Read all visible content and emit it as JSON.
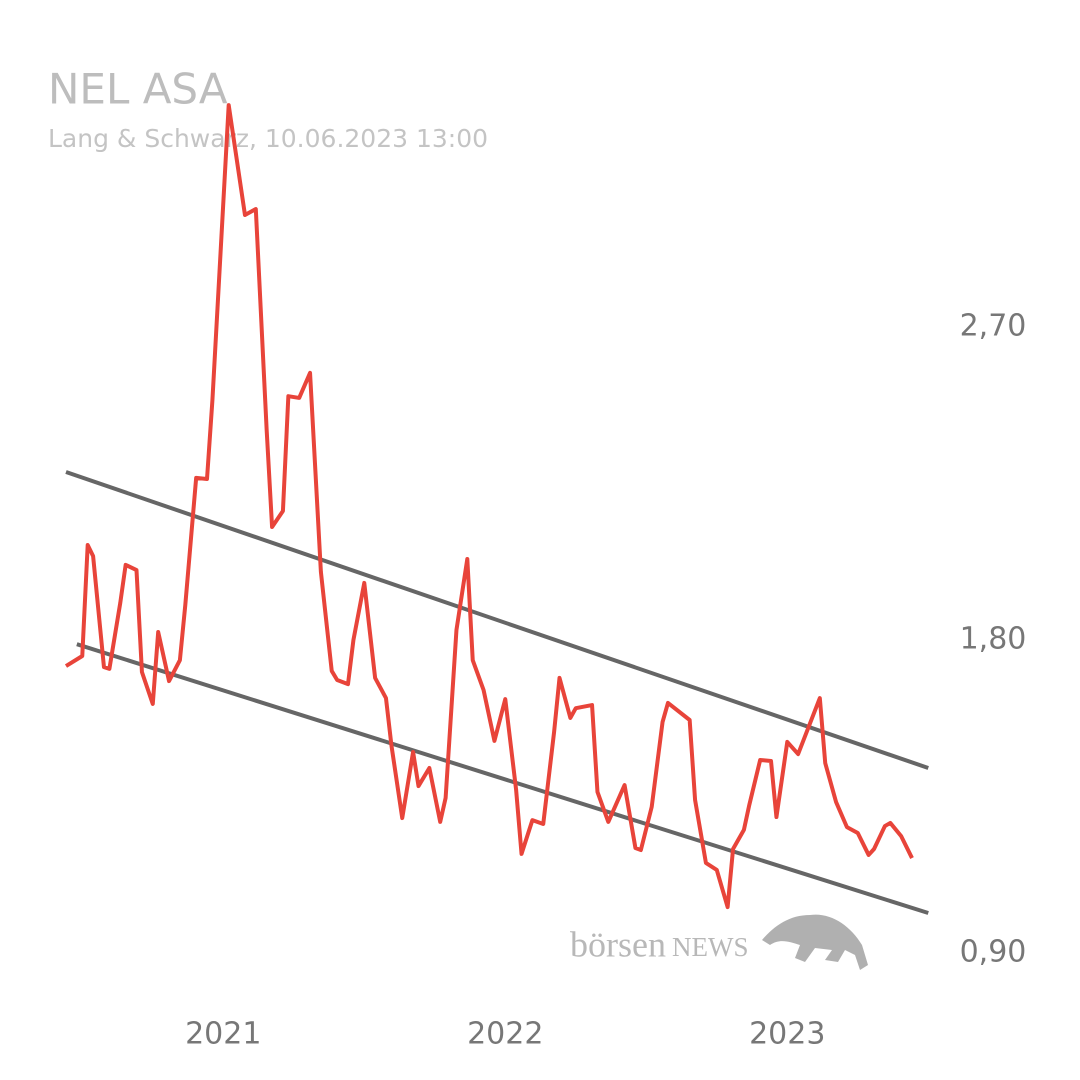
{
  "chart_data": {
    "type": "line",
    "title": "NEL ASA",
    "subtitle": "Lang & Schwarz, 10.06.2023 13:00",
    "watermark": [
      "börsen",
      "NEWS"
    ],
    "x": [
      0,
      3,
      4,
      5,
      7,
      8,
      10,
      11,
      13,
      14,
      16,
      17,
      19,
      21,
      22,
      24,
      26,
      27,
      30,
      33,
      35,
      37,
      38,
      40,
      41,
      43,
      45,
      47,
      49,
      50,
      52,
      53,
      55,
      57,
      59,
      60,
      62,
      64,
      65,
      67,
      69,
      70,
      72,
      74,
      75,
      77,
      79,
      81,
      83,
      84,
      86,
      88,
      90,
      91,
      93,
      94,
      97,
      98,
      100,
      103,
      105,
      106,
      108,
      110,
      111,
      115,
      116,
      118,
      120,
      122,
      123,
      125,
      126,
      128,
      130,
      131,
      133,
      135,
      139,
      140,
      142,
      144,
      146,
      148,
      149,
      151,
      152,
      154,
      156
    ],
    "series": [
      {
        "color": "#e8443a",
        "values": [
          1.725,
          1.754,
          2.073,
          2.041,
          1.722,
          1.717,
          1.906,
          2.016,
          2.001,
          1.708,
          1.616,
          1.823,
          1.682,
          1.742,
          1.901,
          2.266,
          2.263,
          2.49,
          3.338,
          3.022,
          3.039,
          2.404,
          2.125,
          2.171,
          2.501,
          2.496,
          2.568,
          1.996,
          1.711,
          1.685,
          1.673,
          1.8,
          1.964,
          1.691,
          1.633,
          1.498,
          1.288,
          1.478,
          1.38,
          1.432,
          1.277,
          1.346,
          1.829,
          2.033,
          1.742,
          1.656,
          1.51,
          1.63,
          1.369,
          1.185,
          1.282,
          1.271,
          1.535,
          1.691,
          1.576,
          1.604,
          1.613,
          1.363,
          1.277,
          1.383,
          1.202,
          1.196,
          1.32,
          1.564,
          1.619,
          1.57,
          1.34,
          1.159,
          1.139,
          1.032,
          1.199,
          1.254,
          1.326,
          1.455,
          1.452,
          1.291,
          1.507,
          1.472,
          1.633,
          1.446,
          1.334,
          1.262,
          1.245,
          1.182,
          1.199,
          1.265,
          1.274,
          1.236,
          1.173
        ]
      }
    ],
    "trendlines": [
      {
        "color": "#666666",
        "x": [
          0,
          159
        ],
        "values": [
          2.283,
          1.432
        ]
      },
      {
        "color": "#666666",
        "x": [
          2,
          159
        ],
        "values": [
          1.788,
          1.015
        ]
      }
    ],
    "xlim": [
      0,
      160
    ],
    "ylim": [
      0.8,
      3.35
    ],
    "xticks": [
      {
        "value": 29,
        "label": "2021"
      },
      {
        "value": 81,
        "label": "2022"
      },
      {
        "value": 133,
        "label": "2023"
      }
    ],
    "yticks": [
      {
        "value": 0.9,
        "label": "0,90"
      },
      {
        "value": 1.8,
        "label": "1,80"
      },
      {
        "value": 2.7,
        "label": "2,70"
      }
    ]
  }
}
